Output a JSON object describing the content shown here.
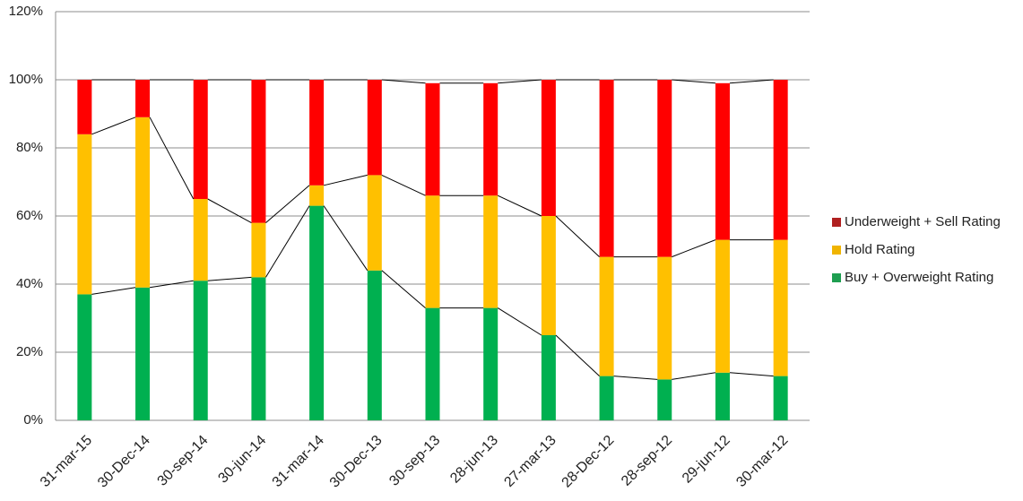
{
  "chart_data": {
    "type": "stacked_bar",
    "categories": [
      "31-mar-15",
      "30-Dec-14",
      "30-sep-14",
      "30-jun-14",
      "31-mar-14",
      "30-Dec-13",
      "30-sep-13",
      "28-jun-13",
      "27-mar-13",
      "28-Dec-12",
      "28-sep-12",
      "29-jun-12",
      "30-mar-12"
    ],
    "series": [
      {
        "name": "Buy + Overweight Rating",
        "color": "#00b050",
        "legend_color": "#1e9e50",
        "values": [
          37,
          39,
          41,
          42,
          63,
          44,
          33,
          33,
          25,
          13,
          12,
          14,
          13
        ]
      },
      {
        "name": "Hold Rating",
        "color": "#ffc000",
        "legend_color": "#f0b400",
        "values": [
          47,
          50,
          24,
          16,
          6,
          28,
          33,
          33,
          35,
          35,
          36,
          39,
          40
        ]
      },
      {
        "name": "Underweight + Sell Rating",
        "color": "#ff0000",
        "legend_color": "#b02020",
        "values": [
          16,
          11,
          35,
          42,
          31,
          28,
          33,
          33,
          40,
          52,
          52,
          46,
          47
        ]
      }
    ],
    "ylim": [
      0,
      120
    ],
    "yticks": [
      {
        "value": 0,
        "label": "0%"
      },
      {
        "value": 20,
        "label": "20%"
      },
      {
        "value": 40,
        "label": "40%"
      },
      {
        "value": 60,
        "label": "60%"
      },
      {
        "value": 80,
        "label": "80%"
      },
      {
        "value": 100,
        "label": "100%"
      },
      {
        "value": 120,
        "label": "120%"
      }
    ],
    "grid": true,
    "legend": "right",
    "series_lines": true
  }
}
